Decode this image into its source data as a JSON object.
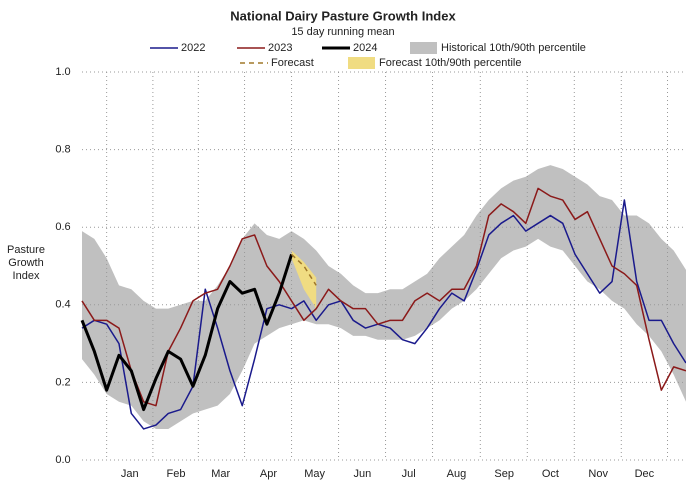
{
  "chart_data": {
    "type": "line",
    "title": "National Dairy Pasture Growth Index",
    "subtitle": "15 day running mean",
    "ylabel": "Pasture Growth Index",
    "x": [
      -16,
      -8,
      0,
      8,
      16,
      24,
      32,
      40,
      48,
      56,
      64,
      72,
      80,
      88,
      96,
      104,
      112,
      120,
      128,
      136,
      144,
      152,
      160,
      168,
      176,
      184,
      192,
      200,
      208,
      216,
      224,
      232,
      240,
      248,
      256,
      264,
      272,
      280,
      288,
      296,
      304,
      312,
      320,
      328,
      336,
      344,
      352,
      360,
      368,
      376
    ],
    "xlim": [
      -16,
      376
    ],
    "xticks": [
      {
        "value": 15,
        "label": "Jan"
      },
      {
        "value": 45,
        "label": "Feb"
      },
      {
        "value": 74,
        "label": "Mar"
      },
      {
        "value": 105,
        "label": "Apr"
      },
      {
        "value": 135,
        "label": "May"
      },
      {
        "value": 166,
        "label": "Jun"
      },
      {
        "value": 196,
        "label": "Jul"
      },
      {
        "value": 227,
        "label": "Aug"
      },
      {
        "value": 258,
        "label": "Sep"
      },
      {
        "value": 288,
        "label": "Oct"
      },
      {
        "value": 319,
        "label": "Nov"
      },
      {
        "value": 349,
        "label": "Dec"
      }
    ],
    "ylim": [
      0,
      1
    ],
    "yticks": [
      {
        "value": 0,
        "label": "0.0"
      },
      0.2,
      0.4,
      0.6,
      0.8,
      {
        "value": 1,
        "label": "1.0"
      }
    ],
    "grid": true,
    "bands": [
      {
        "name": "Historical 10th/90th percentile",
        "color": "#c0c0c0",
        "upper": [
          0.59,
          0.57,
          0.52,
          0.45,
          0.44,
          0.41,
          0.39,
          0.39,
          0.4,
          0.41,
          0.41,
          0.45,
          0.5,
          0.57,
          0.61,
          0.58,
          0.57,
          0.59,
          0.57,
          0.54,
          0.5,
          0.48,
          0.45,
          0.43,
          0.43,
          0.44,
          0.44,
          0.46,
          0.48,
          0.52,
          0.55,
          0.58,
          0.63,
          0.67,
          0.7,
          0.72,
          0.73,
          0.75,
          0.76,
          0.75,
          0.73,
          0.71,
          0.68,
          0.67,
          0.63,
          0.63,
          0.61,
          0.57,
          0.54,
          0.49
        ],
        "lower": [
          0.26,
          0.22,
          0.17,
          0.15,
          0.14,
          0.1,
          0.08,
          0.08,
          0.1,
          0.12,
          0.13,
          0.14,
          0.17,
          0.23,
          0.3,
          0.32,
          0.34,
          0.35,
          0.36,
          0.35,
          0.35,
          0.34,
          0.32,
          0.32,
          0.31,
          0.31,
          0.31,
          0.32,
          0.34,
          0.36,
          0.39,
          0.41,
          0.44,
          0.48,
          0.52,
          0.54,
          0.55,
          0.57,
          0.55,
          0.54,
          0.5,
          0.46,
          0.44,
          0.41,
          0.39,
          0.35,
          0.32,
          0.28,
          0.22,
          0.15
        ]
      },
      {
        "name": "Forecast 10th/90th percentile",
        "color": "#f0dc82",
        "upper": [
          null,
          null,
          null,
          null,
          null,
          null,
          null,
          null,
          null,
          null,
          null,
          null,
          null,
          null,
          null,
          null,
          null,
          0.54,
          0.51,
          0.47,
          null,
          null,
          null,
          null,
          null,
          null,
          null,
          null,
          null,
          null,
          null,
          null,
          null,
          null,
          null,
          null,
          null,
          null,
          null,
          null,
          null,
          null,
          null,
          null,
          null,
          null,
          null,
          null,
          null,
          null
        ],
        "lower": [
          null,
          null,
          null,
          null,
          null,
          null,
          null,
          null,
          null,
          null,
          null,
          null,
          null,
          null,
          null,
          null,
          null,
          0.52,
          0.44,
          0.39,
          null,
          null,
          null,
          null,
          null,
          null,
          null,
          null,
          null,
          null,
          null,
          null,
          null,
          null,
          null,
          null,
          null,
          null,
          null,
          null,
          null,
          null,
          null,
          null,
          null,
          null,
          null,
          null,
          null,
          null
        ]
      }
    ],
    "series": [
      {
        "name": "2022",
        "color": "#1a1a8c",
        "linewidth": 1.5,
        "values": [
          0.34,
          0.36,
          0.35,
          0.3,
          0.12,
          0.08,
          0.09,
          0.12,
          0.13,
          0.19,
          0.44,
          0.34,
          0.23,
          0.14,
          0.26,
          0.39,
          0.4,
          0.39,
          0.41,
          0.36,
          0.4,
          0.41,
          0.36,
          0.34,
          0.35,
          0.34,
          0.31,
          0.3,
          0.34,
          0.39,
          0.43,
          0.41,
          0.49,
          0.58,
          0.61,
          0.63,
          0.59,
          0.61,
          0.63,
          0.61,
          0.53,
          0.48,
          0.43,
          0.46,
          0.67,
          0.46,
          0.36,
          0.36,
          0.3,
          0.25
        ]
      },
      {
        "name": "2023",
        "color": "#8b1a1a",
        "linewidth": 1.5,
        "values": [
          0.41,
          0.36,
          0.36,
          0.34,
          0.23,
          0.15,
          0.14,
          0.28,
          0.34,
          0.41,
          0.43,
          0.44,
          0.5,
          0.57,
          0.58,
          0.5,
          0.46,
          0.41,
          0.36,
          0.39,
          0.44,
          0.41,
          0.39,
          0.39,
          0.35,
          0.36,
          0.36,
          0.41,
          0.43,
          0.41,
          0.44,
          0.44,
          0.5,
          0.63,
          0.66,
          0.64,
          0.61,
          0.7,
          0.68,
          0.67,
          0.62,
          0.64,
          0.57,
          0.5,
          0.48,
          0.45,
          0.31,
          0.18,
          0.24,
          0.23
        ]
      },
      {
        "name": "2024",
        "color": "#000000",
        "linewidth": 3,
        "values": [
          0.36,
          0.28,
          0.18,
          0.27,
          0.23,
          0.13,
          0.21,
          0.28,
          0.26,
          0.19,
          0.27,
          0.39,
          0.46,
          0.43,
          0.44,
          0.35,
          0.43,
          0.53,
          null,
          null,
          null,
          null,
          null,
          null,
          null,
          null,
          null,
          null,
          null,
          null,
          null,
          null,
          null,
          null,
          null,
          null,
          null,
          null,
          null,
          null,
          null,
          null,
          null,
          null,
          null,
          null,
          null,
          null,
          null,
          null
        ]
      },
      {
        "name": "Forecast",
        "color": "#a0782a",
        "linewidth": 1.5,
        "linestyle": "dashed",
        "values": [
          null,
          null,
          null,
          null,
          null,
          null,
          null,
          null,
          null,
          null,
          null,
          null,
          null,
          null,
          null,
          null,
          null,
          0.53,
          0.5,
          0.45,
          null,
          null,
          null,
          null,
          null,
          null,
          null,
          null,
          null,
          null,
          null,
          null,
          null,
          null,
          null,
          null,
          null,
          null,
          null,
          null,
          null,
          null,
          null,
          null,
          null,
          null,
          null,
          null,
          null,
          null
        ]
      }
    ]
  }
}
